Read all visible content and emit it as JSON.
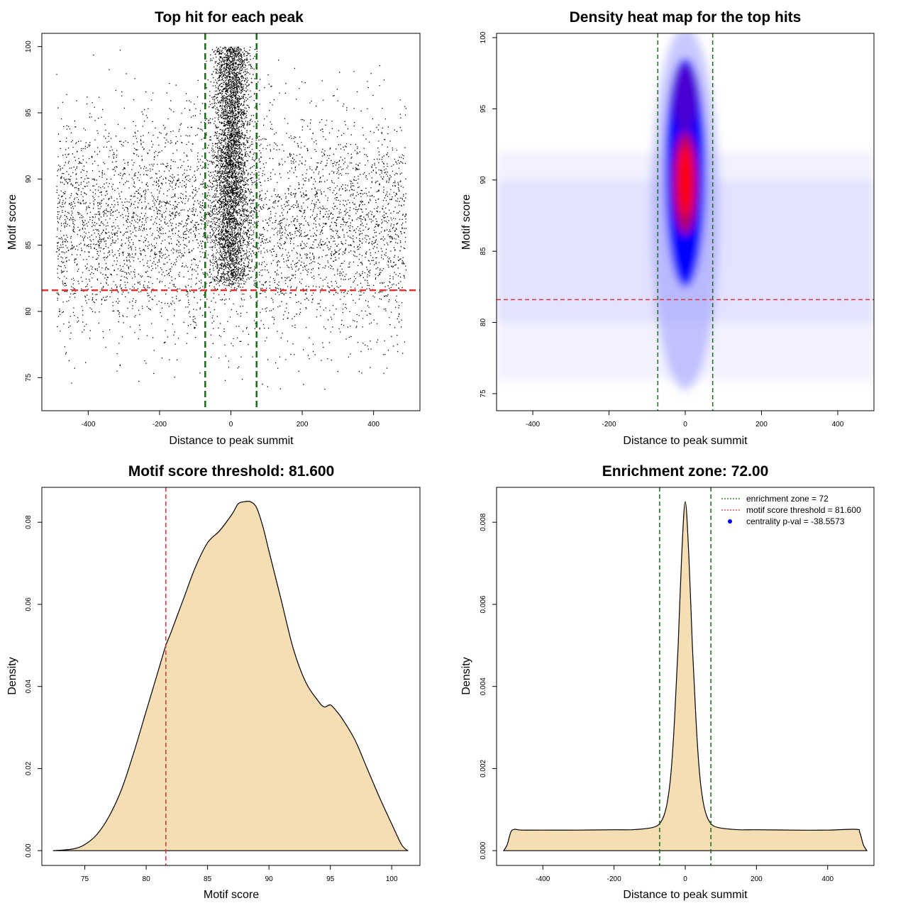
{
  "colors": {
    "threshold_line": "#e03030",
    "zone_line": "#1a6b1a",
    "density_fill": "#f5deb3",
    "scatter_point": "#000000",
    "heat_low": "#ffffff",
    "heat_mid": "#0000ff",
    "heat_high": "#ff0000"
  },
  "chart_data": [
    {
      "type": "scatter",
      "title": "Top hit for each peak",
      "xlabel": "Distance to peak summit",
      "ylabel": "Motif score",
      "xlim": [
        -530,
        530
      ],
      "ylim": [
        72.5,
        101
      ],
      "xticks": [
        -400,
        -200,
        0,
        200,
        400
      ],
      "yticks": [
        75,
        80,
        85,
        90,
        95,
        100
      ],
      "x_range_points": [
        -490,
        490
      ],
      "y_range_points": [
        74,
        100
      ],
      "central_cluster": {
        "center_x": 0,
        "sd_x": 25,
        "y_range": [
          82,
          100
        ]
      },
      "threshold_y": 81.6,
      "zone_x": [
        -72,
        72
      ]
    },
    {
      "type": "heatmap",
      "title": "Density heat map for the top hits",
      "xlabel": "Distance to peak summit",
      "ylabel": "Motif score",
      "xlim": [
        -495,
        495
      ],
      "ylim": [
        73.8,
        100.3
      ],
      "xticks": [
        -400,
        -200,
        0,
        200,
        400
      ],
      "yticks": [
        75,
        80,
        85,
        90,
        95,
        100
      ],
      "peak": {
        "x": 0,
        "y": 90
      },
      "threshold_y": 81.6,
      "zone_x": [
        -72,
        72
      ]
    },
    {
      "type": "area",
      "title": "Motif score threshold: 81.600",
      "xlabel": "Motif score",
      "ylabel": "Density",
      "xlim": [
        71.5,
        102.3
      ],
      "ylim": [
        -0.0036,
        0.0885
      ],
      "xticks": [
        75,
        80,
        85,
        90,
        95,
        100
      ],
      "yticks": [
        0.0,
        0.02,
        0.04,
        0.06,
        0.08
      ],
      "ytick_labels": [
        "0.00",
        "0.02",
        "0.04",
        "0.06",
        "0.08"
      ],
      "x": [
        72.4,
        74,
        75,
        76,
        77,
        78,
        79,
        80,
        81,
        81.6,
        82,
        83,
        84,
        85,
        86,
        87,
        87.5,
        88,
        88.5,
        89,
        89.5,
        90,
        91,
        92,
        93,
        94,
        94.5,
        95,
        95.5,
        96,
        97,
        98,
        99,
        100,
        100.8,
        101.3
      ],
      "y": [
        0.0,
        0.0004,
        0.0015,
        0.004,
        0.0085,
        0.015,
        0.024,
        0.034,
        0.044,
        0.05,
        0.053,
        0.061,
        0.069,
        0.075,
        0.078,
        0.082,
        0.0845,
        0.085,
        0.085,
        0.0835,
        0.079,
        0.073,
        0.061,
        0.049,
        0.041,
        0.0365,
        0.035,
        0.0355,
        0.034,
        0.032,
        0.027,
        0.02,
        0.013,
        0.0065,
        0.0015,
        0.0
      ],
      "threshold_x": 81.6
    },
    {
      "type": "area",
      "title": "Enrichment zone: 72.00",
      "xlabel": "Distance to peak summit",
      "ylabel": "Density",
      "xlim": [
        -530,
        530
      ],
      "ylim": [
        -0.00036,
        0.00885
      ],
      "xticks": [
        -400,
        -200,
        0,
        200,
        400
      ],
      "yticks": [
        0.0,
        0.002,
        0.004,
        0.006,
        0.008
      ],
      "ytick_labels": [
        "0.000",
        "0.002",
        "0.004",
        "0.006",
        "0.008"
      ],
      "x": [
        -510,
        -500,
        -490,
        -480,
        -460,
        -400,
        -300,
        -200,
        -150,
        -100,
        -80,
        -70,
        -60,
        -50,
        -40,
        -30,
        -20,
        -10,
        0,
        10,
        20,
        30,
        40,
        50,
        60,
        70,
        80,
        100,
        150,
        200,
        300,
        400,
        480,
        490,
        500,
        510
      ],
      "y": [
        0.0,
        0.00015,
        0.00045,
        0.00052,
        0.0005,
        0.0005,
        0.0005,
        0.00051,
        0.00051,
        0.00055,
        0.0006,
        0.00068,
        0.00085,
        0.0012,
        0.0019,
        0.0032,
        0.005,
        0.0072,
        0.0085,
        0.0072,
        0.005,
        0.0032,
        0.0019,
        0.0012,
        0.00085,
        0.00068,
        0.0006,
        0.00055,
        0.00051,
        0.00051,
        0.0005,
        0.0005,
        0.00052,
        0.00045,
        0.00015,
        0.0
      ],
      "zone_x": [
        -72,
        72
      ],
      "legend": [
        {
          "label": "enrichment zone = 72",
          "style": "dotted",
          "color": "#1a6b1a"
        },
        {
          "label": "motif score threshold = 81.600",
          "style": "dotted",
          "color": "#e03030"
        },
        {
          "label": "centrality p-val = -38.5573",
          "style": "point",
          "color": "#0000ff"
        }
      ],
      "legend_position": "top-right"
    }
  ]
}
